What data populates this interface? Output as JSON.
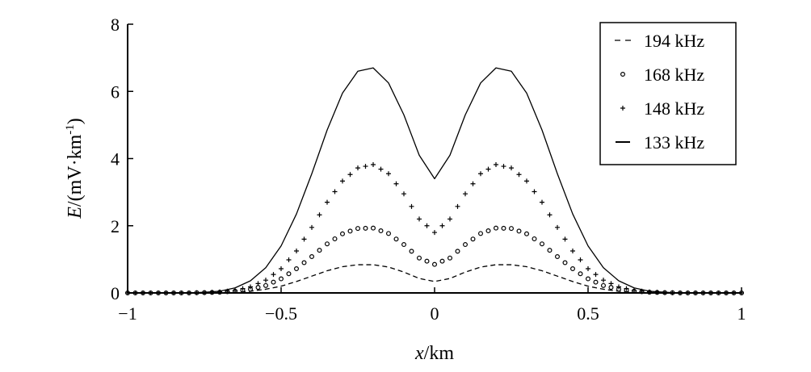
{
  "chart_data": {
    "type": "line",
    "title": "",
    "xlabel": {
      "var": "x",
      "unit": "/km"
    },
    "ylabel": {
      "var": "E",
      "unit": "/(mV·km",
      "sup": "-1",
      "close": ")"
    },
    "xlim": [
      -1,
      1
    ],
    "ylim": [
      0,
      8
    ],
    "xticks": [
      -1,
      -0.5,
      0,
      0.5,
      1
    ],
    "xtick_labels": [
      "−1",
      "−0.5",
      "0",
      "0.5",
      "1"
    ],
    "yticks": [
      0,
      2,
      4,
      6,
      8
    ],
    "ytick_labels": [
      "0",
      "2",
      "4",
      "6",
      "8"
    ],
    "grid": false,
    "legend_position": "top-right",
    "x": [
      -1.0,
      -0.95,
      -0.9,
      -0.85,
      -0.8,
      -0.75,
      -0.7,
      -0.65,
      -0.6,
      -0.55,
      -0.5,
      -0.45,
      -0.4,
      -0.35,
      -0.3,
      -0.25,
      -0.2,
      -0.15,
      -0.1,
      -0.05,
      0.0,
      0.05,
      0.1,
      0.15,
      0.2,
      0.25,
      0.3,
      0.35,
      0.4,
      0.45,
      0.5,
      0.55,
      0.6,
      0.65,
      0.7,
      0.75,
      0.8,
      0.85,
      0.9,
      0.95,
      1.0
    ],
    "series": [
      {
        "name": "194 kHz",
        "style": "dashed",
        "values": [
          0.0,
          0.0,
          0.0,
          0.0,
          0.0,
          0.0,
          0.01,
          0.02,
          0.05,
          0.11,
          0.2,
          0.34,
          0.5,
          0.66,
          0.78,
          0.84,
          0.84,
          0.77,
          0.62,
          0.43,
          0.34,
          0.43,
          0.62,
          0.77,
          0.84,
          0.84,
          0.78,
          0.66,
          0.5,
          0.34,
          0.2,
          0.11,
          0.05,
          0.02,
          0.01,
          0.0,
          0.0,
          0.0,
          0.0,
          0.0,
          0.0
        ]
      },
      {
        "name": "168 kHz",
        "style": "circle",
        "values": [
          0.0,
          0.0,
          0.0,
          0.0,
          0.0,
          0.01,
          0.02,
          0.05,
          0.11,
          0.22,
          0.42,
          0.72,
          1.08,
          1.46,
          1.76,
          1.92,
          1.93,
          1.77,
          1.44,
          1.04,
          0.85,
          1.04,
          1.44,
          1.77,
          1.93,
          1.92,
          1.76,
          1.46,
          1.08,
          0.72,
          0.42,
          0.22,
          0.11,
          0.05,
          0.02,
          0.01,
          0.0,
          0.0,
          0.0,
          0.0,
          0.0
        ]
      },
      {
        "name": "148 kHz",
        "style": "plus",
        "values": [
          0.0,
          0.0,
          0.0,
          0.0,
          0.0,
          0.01,
          0.03,
          0.08,
          0.18,
          0.38,
          0.72,
          1.25,
          1.95,
          2.7,
          3.33,
          3.72,
          3.82,
          3.55,
          2.95,
          2.2,
          1.8,
          2.2,
          2.95,
          3.55,
          3.82,
          3.72,
          3.33,
          2.7,
          1.95,
          1.25,
          0.72,
          0.38,
          0.18,
          0.08,
          0.03,
          0.01,
          0.0,
          0.0,
          0.0,
          0.0,
          0.0
        ]
      },
      {
        "name": "133 kHz",
        "style": "solid",
        "values": [
          0.0,
          0.0,
          0.0,
          0.0,
          0.0,
          0.02,
          0.05,
          0.15,
          0.36,
          0.75,
          1.4,
          2.35,
          3.55,
          4.85,
          5.95,
          6.6,
          6.7,
          6.25,
          5.3,
          4.1,
          3.4,
          4.1,
          5.3,
          6.25,
          6.7,
          6.6,
          5.95,
          4.85,
          3.55,
          2.35,
          1.4,
          0.75,
          0.36,
          0.15,
          0.05,
          0.02,
          0.0,
          0.0,
          0.0,
          0.0,
          0.0
        ]
      }
    ]
  }
}
